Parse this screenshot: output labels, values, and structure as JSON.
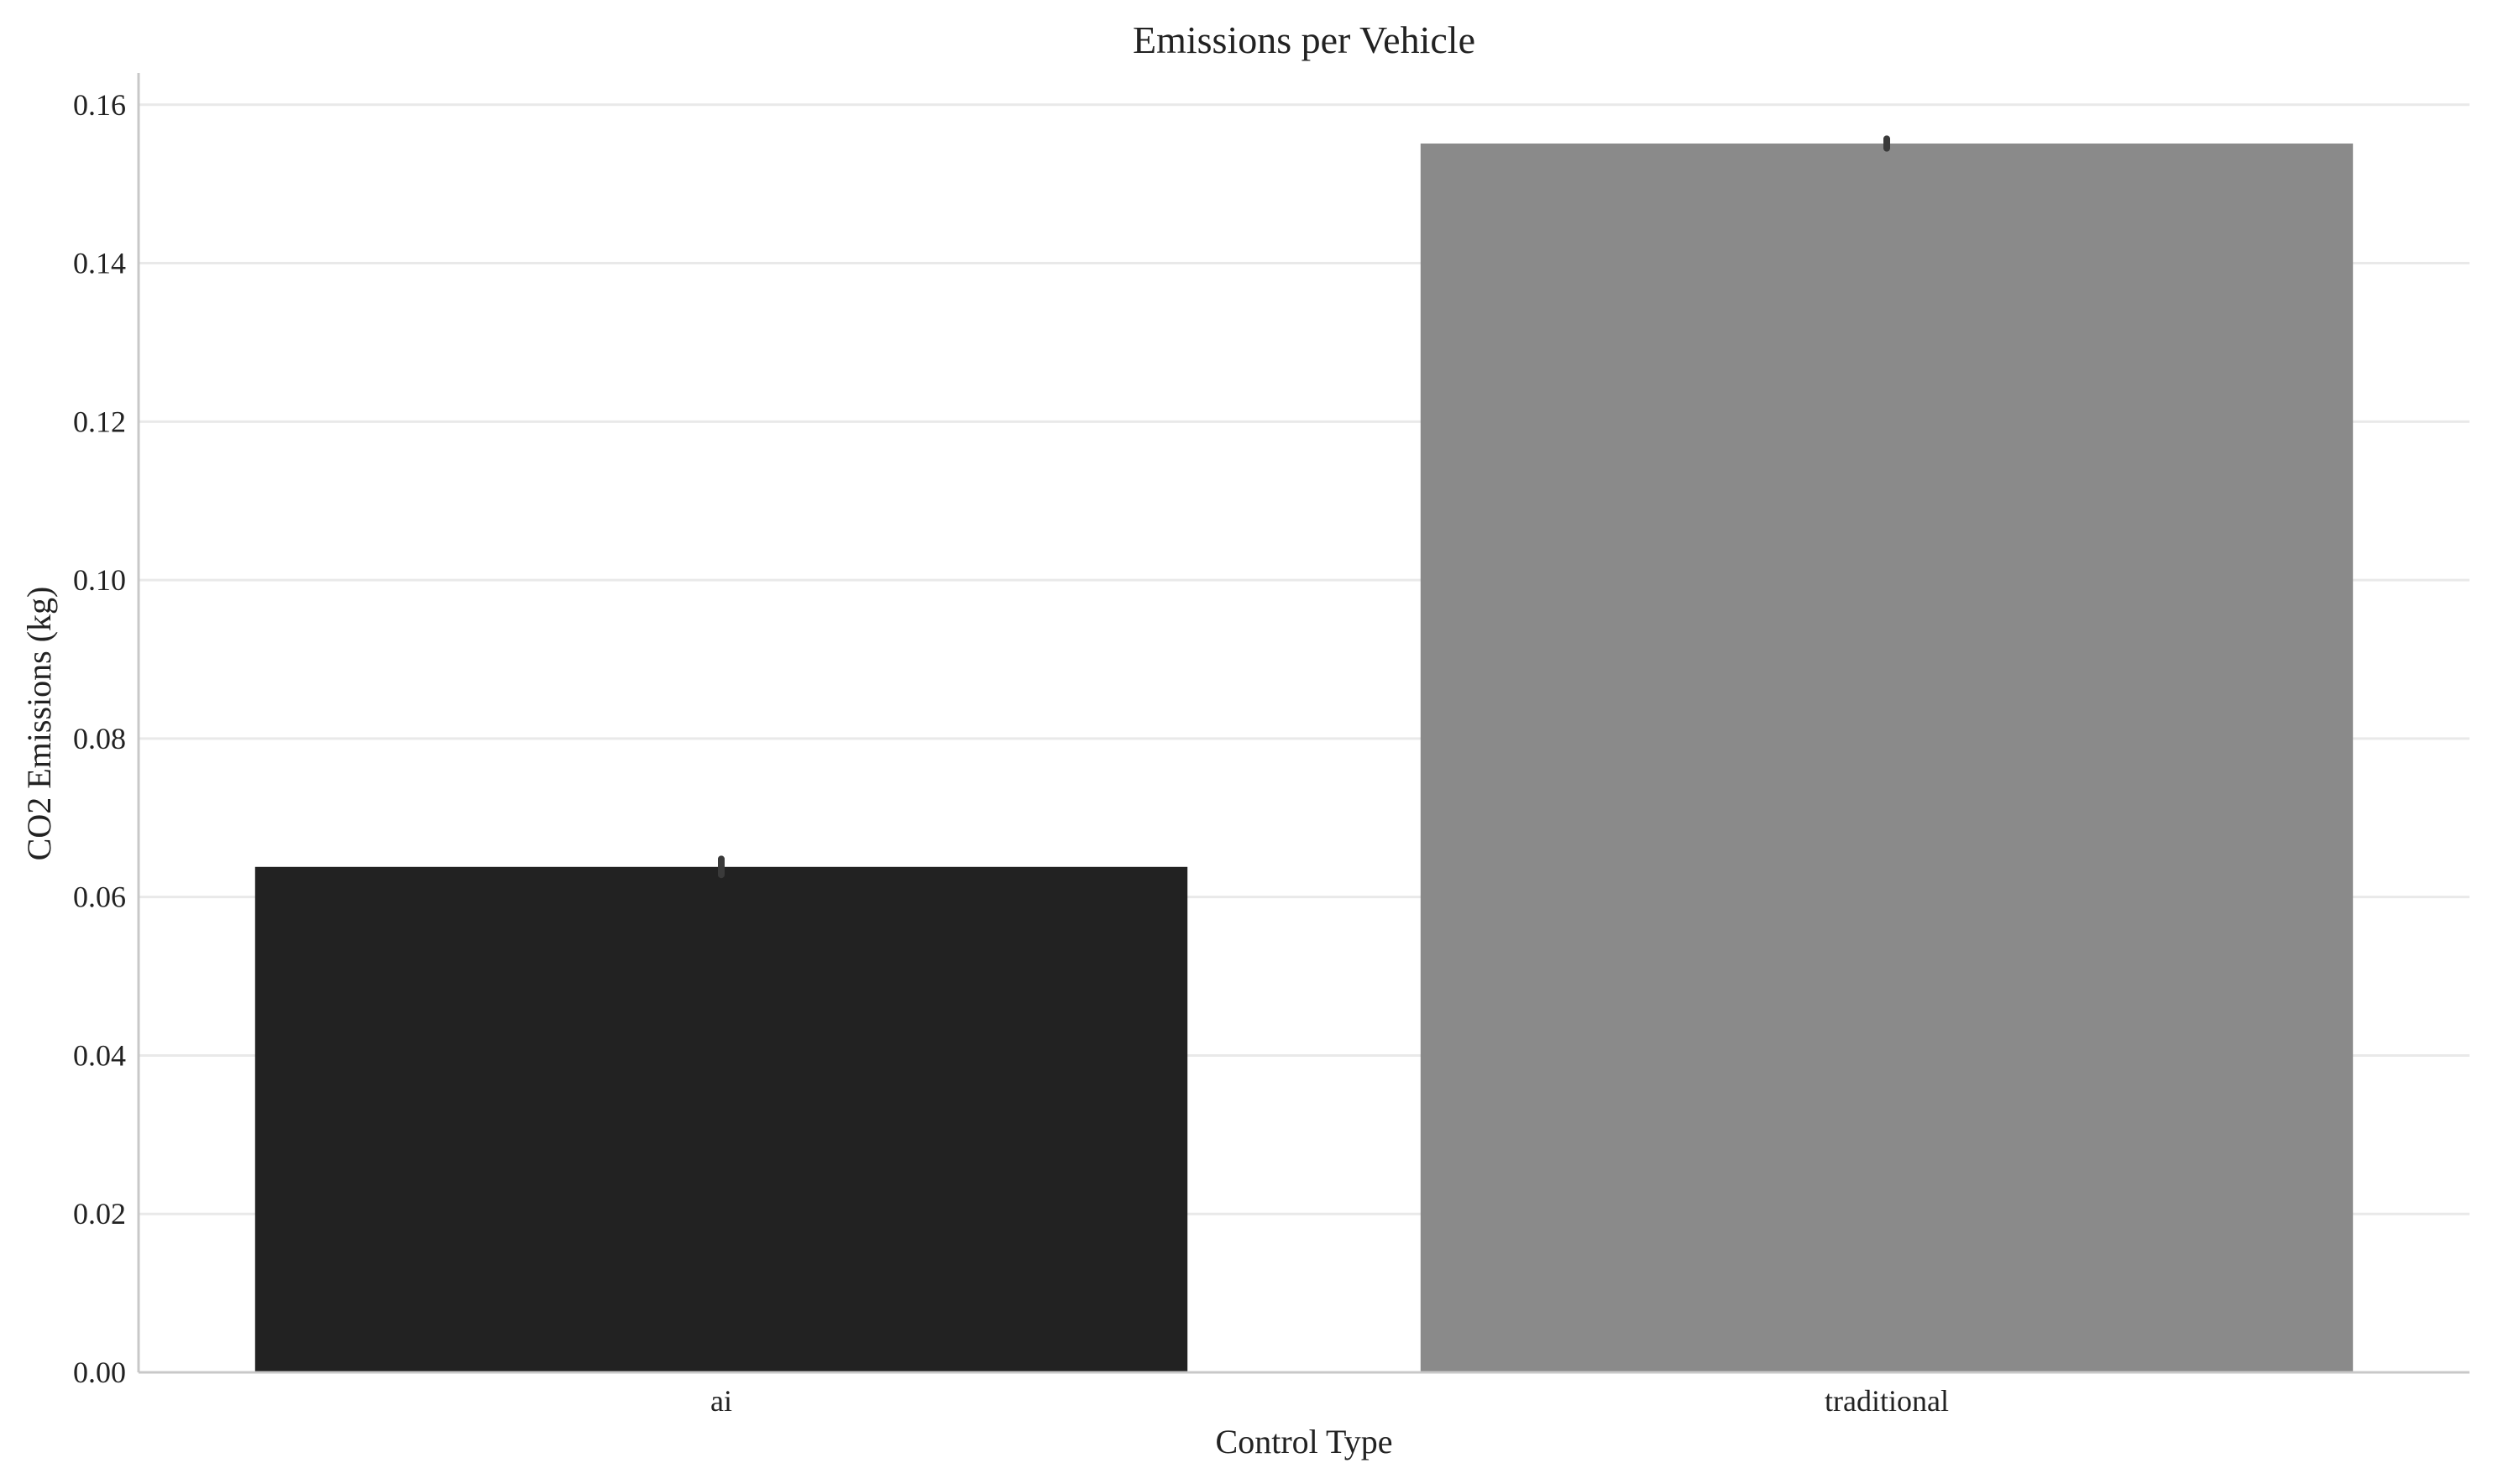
{
  "chart_data": {
    "type": "bar",
    "title": "Emissions per Vehicle",
    "xlabel": "Control Type",
    "ylabel": "CO2 Emissions (kg)",
    "categories": [
      "ai",
      "traditional"
    ],
    "values": [
      0.0638,
      0.1551
    ],
    "error_bars": [
      [
        0.0628,
        0.0648
      ],
      [
        0.1545,
        0.1557
      ]
    ],
    "ylim": [
      0,
      0.164
    ],
    "yticks": [
      "0.00",
      "0.02",
      "0.04",
      "0.06",
      "0.08",
      "0.10",
      "0.12",
      "0.14",
      "0.16"
    ],
    "grid": "horizontal",
    "colors": {
      "bars": [
        "#222222",
        "#8a8a8a"
      ],
      "error_bar": "#3a3a3a",
      "grid": "#e9e9e9",
      "axis": "#c8c8c8",
      "text": "#222222"
    }
  }
}
